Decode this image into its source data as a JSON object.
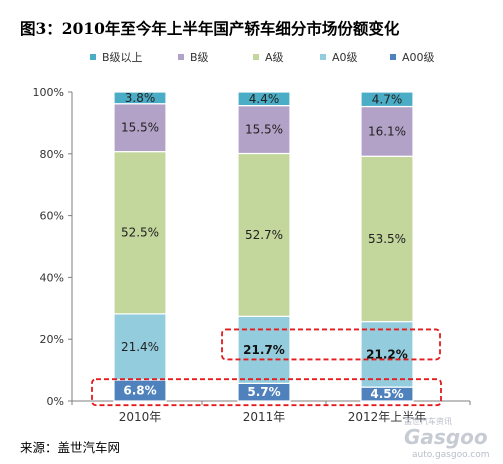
{
  "chart_data": {
    "type": "bar",
    "stacked": true,
    "title": "图3：2010年至今年上半年国产轿车细分市场份额变化",
    "categories": [
      "2010年",
      "2011年",
      "2012年上半年"
    ],
    "series": [
      {
        "name": "A00级",
        "color": "#4f81bd",
        "values": [
          6.8,
          5.7,
          4.5
        ],
        "labels": [
          "6.8%",
          "5.7%",
          "4.5%"
        ],
        "label_style": "light"
      },
      {
        "name": "A0级",
        "color": "#93cddd",
        "values": [
          21.4,
          21.7,
          21.2
        ],
        "labels": [
          "21.4%",
          "21.7%",
          "21.2%"
        ],
        "label_style": "mixed"
      },
      {
        "name": "A级",
        "color": "#c3d69b",
        "values": [
          52.5,
          52.7,
          53.5
        ],
        "labels": [
          "52.5%",
          "52.7%",
          "53.5%"
        ],
        "label_style": "normal"
      },
      {
        "name": "B级",
        "color": "#b3a2c7",
        "values": [
          15.5,
          15.5,
          16.1
        ],
        "labels": [
          "15.5%",
          "15.5%",
          "16.1%"
        ],
        "label_style": "normal"
      },
      {
        "name": "B级以上",
        "color": "#4bacc6",
        "values": [
          3.8,
          4.4,
          4.7
        ],
        "labels": [
          "3.8%",
          "4.4%",
          "4.7%"
        ],
        "label_style": "normal"
      }
    ],
    "legend_order": [
      "B级以上",
      "B级",
      "A级",
      "A0级",
      "A00级"
    ],
    "legend_position": "top",
    "y_ticks": [
      "0%",
      "20%",
      "40%",
      "60%",
      "80%",
      "100%"
    ],
    "ylim": [
      0,
      100
    ],
    "grid": false,
    "highlights": [
      "A0级 (2011年, 2012年上半年)",
      "A00级 (all years)"
    ]
  },
  "source": "来源：盖世汽车网",
  "watermark": {
    "top": "盖世汽车资讯",
    "brand": "Gasgoo",
    "url": "auto.gasgoo.com"
  }
}
